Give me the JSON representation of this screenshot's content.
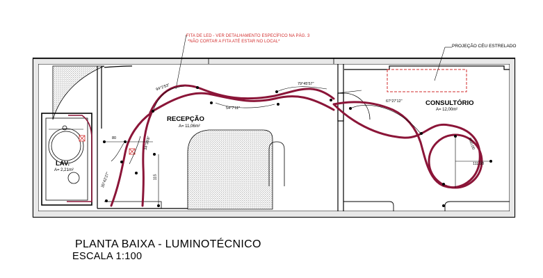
{
  "notes": {
    "led_line1": "FITA DE LED - VER DETALHAMENTO ESPECÍFICO NA PÁG. 3",
    "led_line2": "*NÃO CORTAR A FITA ATÉ ESTAR NO LOCAL*",
    "starry": "PROJEÇÃO CÉU ESTRELADO"
  },
  "rooms": {
    "recepcao": {
      "name": "RECEPÇÃO",
      "area": "A= 11,06m²"
    },
    "consultorio": {
      "name": "CONSULTÓRIO",
      "area": "A= 12,00m²"
    },
    "lav": {
      "name": "LAV.",
      "area": "A= 2,21m²"
    }
  },
  "dimensions": {
    "angle_1": "94°2'53\"",
    "angle_2": "79°45'57\"",
    "angle_3": "54°7'11\"",
    "angle_4": "67°27'12\"",
    "angle_5": "34°38'8\"",
    "angle_6": "35°42'27\"",
    "len_80": "80",
    "len_115": "115",
    "radius": "R60,00",
    "len_111": "111,98"
  },
  "title": {
    "main": "PLANTA BAIXA - LUMINOTÉCNICO",
    "scale": "ESCALA 1:100"
  },
  "colors": {
    "led": "#8b1538",
    "note": "#d22b2b",
    "hatch": "#8a8a8a"
  }
}
